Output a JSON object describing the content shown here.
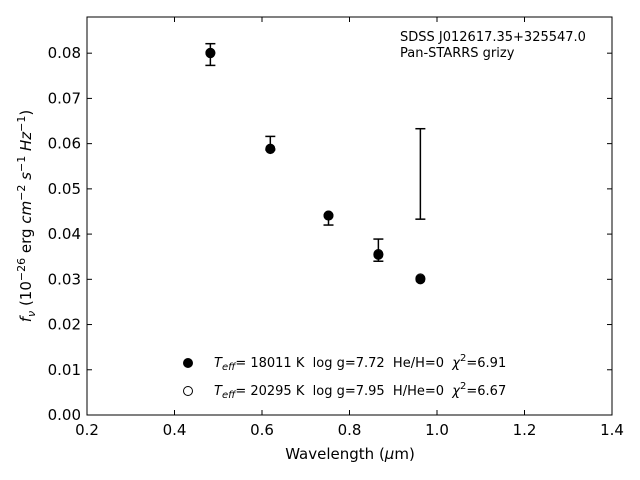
{
  "chart_data": {
    "type": "scatter",
    "annotation": [
      "SDSS J012617.35+325547.0",
      "Pan-STARRS grizy"
    ],
    "xlabel": "Wavelength (μm)",
    "ylabel": "f_ν (10^−26 erg cm^−2 s^−1 Hz^−1)",
    "xlim": [
      0.2,
      1.4
    ],
    "ylim": [
      0.0,
      0.088
    ],
    "xticks": [
      0.2,
      0.4,
      0.6,
      0.8,
      1.0,
      1.2,
      1.4
    ],
    "xtick_labels": [
      "0.2",
      "0.4",
      "0.6",
      "0.8",
      "1.0",
      "1.2",
      "1.4"
    ],
    "yticks": [
      0.0,
      0.01,
      0.02,
      0.03,
      0.04,
      0.05,
      0.06,
      0.07,
      0.08
    ],
    "ytick_labels": [
      "0.00",
      "0.01",
      "0.02",
      "0.03",
      "0.04",
      "0.05",
      "0.06",
      "0.07",
      "0.08"
    ],
    "grid": false,
    "legend_position": "lower-center",
    "observed": {
      "x": [
        0.482,
        0.619,
        0.752,
        0.866,
        0.962
      ],
      "y": [
        0.0797,
        0.0596,
        0.0435,
        0.0366,
        0.0534
      ],
      "yerr_low": [
        0.0024,
        0.001,
        0.0015,
        0.0026,
        0.0101
      ],
      "yerr_high": [
        0.0024,
        0.002,
        0.0007,
        0.0023,
        0.0099
      ]
    },
    "series": [
      {
        "marker": "filled-circle",
        "label_parts": {
          "t": "T",
          "sub": "eff",
          "rest": "= 18011 K  log g=7.72  He/H=0  ",
          "chi": "χ",
          "sup": "2",
          "end": "=6.91"
        },
        "x": [
          0.482,
          0.619,
          0.752,
          0.866,
          0.962
        ],
        "y": [
          0.08,
          0.0588,
          0.0441,
          0.0354,
          0.03
        ]
      },
      {
        "marker": "open-circle",
        "label_parts": {
          "t": "T",
          "sub": "eff",
          "rest": "= 20295 K  log g=7.95  H/He=0  ",
          "chi": "χ",
          "sup": "2",
          "end": "=6.67"
        },
        "x": [
          0.482,
          0.619,
          0.752,
          0.866,
          0.962
        ],
        "y": [
          0.0801,
          0.0589,
          0.0441,
          0.0356,
          0.0302
        ]
      }
    ]
  }
}
